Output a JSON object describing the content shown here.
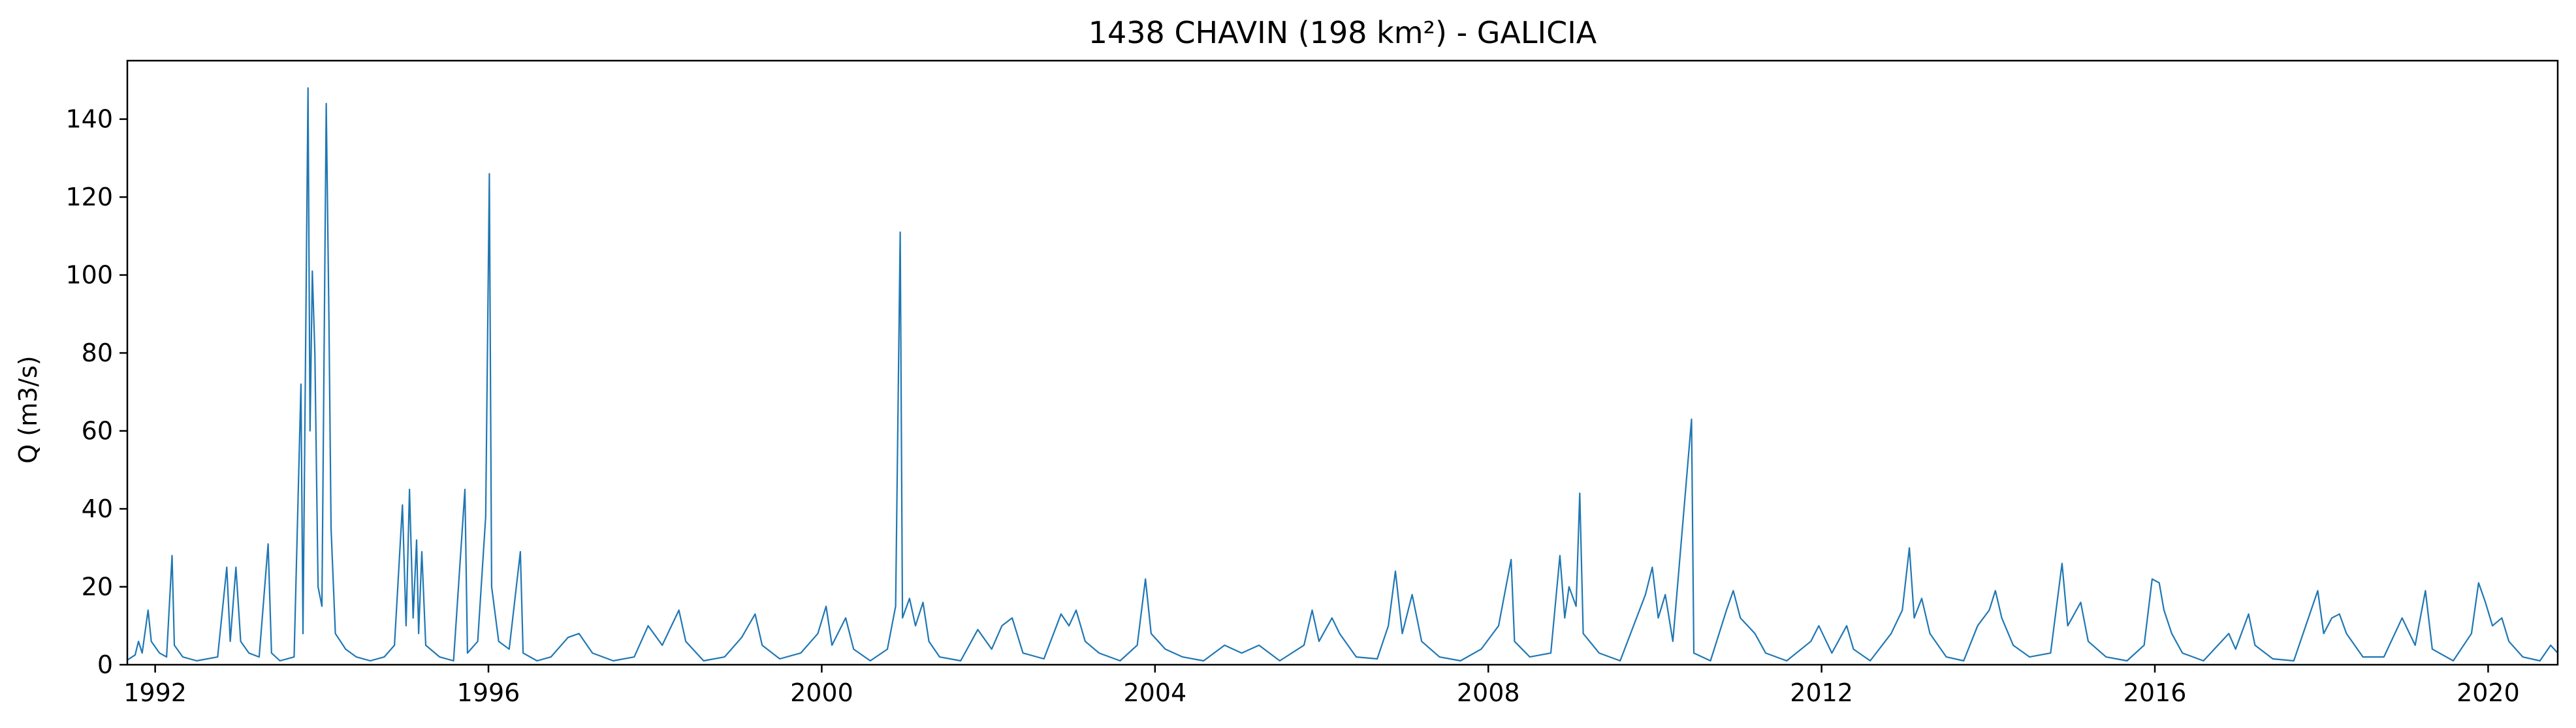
{
  "chart_data": {
    "type": "line",
    "title": "1438 CHAVIN (198 km²) - GALICIA",
    "xlabel": "",
    "ylabel": "Q (m3/s)",
    "xlim": [
      "1991-09-01",
      "2020-11-01"
    ],
    "ylim": [
      0,
      155
    ],
    "x_ticks": [
      "1992",
      "1996",
      "2000",
      "2004",
      "2008",
      "2012",
      "2016",
      "2020"
    ],
    "y_ticks": [
      0,
      20,
      40,
      60,
      80,
      100,
      120,
      140
    ],
    "grid": false,
    "legend": "none",
    "series_color": "#1f77b4",
    "series": [
      {
        "values_info": "date, discharge (m3/s)",
        "points": [
          [
            "1991-09-01",
            1.2
          ],
          [
            "1991-10-05",
            2.5
          ],
          [
            "1991-10-20",
            6.0
          ],
          [
            "1991-11-05",
            3.0
          ],
          [
            "1991-12-01",
            14.0
          ],
          [
            "1991-12-15",
            6.0
          ],
          [
            "1992-01-20",
            3.0
          ],
          [
            "1992-02-20",
            2.0
          ],
          [
            "1992-03-15",
            28.0
          ],
          [
            "1992-03-25",
            5.0
          ],
          [
            "1992-05-01",
            2.0
          ],
          [
            "1992-07-01",
            1.0
          ],
          [
            "1992-10-01",
            2.0
          ],
          [
            "1992-11-10",
            25.0
          ],
          [
            "1992-11-25",
            6.0
          ],
          [
            "1992-12-20",
            25.0
          ],
          [
            "1993-01-10",
            6.0
          ],
          [
            "1993-02-15",
            3.0
          ],
          [
            "1993-04-01",
            2.0
          ],
          [
            "1993-05-10",
            31.0
          ],
          [
            "1993-05-25",
            3.0
          ],
          [
            "1993-07-01",
            1.0
          ],
          [
            "1993-09-01",
            2.0
          ],
          [
            "1993-10-01",
            72.0
          ],
          [
            "1993-10-10",
            8.0
          ],
          [
            "1993-11-01",
            148.0
          ],
          [
            "1993-11-10",
            60.0
          ],
          [
            "1993-11-20",
            101.0
          ],
          [
            "1993-12-01",
            80.0
          ],
          [
            "1993-12-15",
            20.0
          ],
          [
            "1994-01-01",
            15.0
          ],
          [
            "1994-01-20",
            144.0
          ],
          [
            "1994-02-01",
            88.0
          ],
          [
            "1994-02-10",
            35.0
          ],
          [
            "1994-03-01",
            8.0
          ],
          [
            "1994-04-15",
            4.0
          ],
          [
            "1994-06-01",
            2.0
          ],
          [
            "1994-08-01",
            1.0
          ],
          [
            "1994-10-01",
            2.0
          ],
          [
            "1994-11-15",
            5.0
          ],
          [
            "1994-12-20",
            41.0
          ],
          [
            "1995-01-05",
            10.0
          ],
          [
            "1995-01-20",
            45.0
          ],
          [
            "1995-02-05",
            12.0
          ],
          [
            "1995-02-20",
            32.0
          ],
          [
            "1995-03-01",
            8.0
          ],
          [
            "1995-03-15",
            29.0
          ],
          [
            "1995-04-01",
            5.0
          ],
          [
            "1995-06-01",
            2.0
          ],
          [
            "1995-08-01",
            1.0
          ],
          [
            "1995-09-20",
            45.0
          ],
          [
            "1995-10-01",
            3.0
          ],
          [
            "1995-11-15",
            6.0
          ],
          [
            "1995-12-20",
            38.0
          ],
          [
            "1996-01-05",
            126.0
          ],
          [
            "1996-01-15",
            20.0
          ],
          [
            "1996-02-15",
            6.0
          ],
          [
            "1996-04-01",
            4.0
          ],
          [
            "1996-05-20",
            29.0
          ],
          [
            "1996-06-01",
            3.0
          ],
          [
            "1996-08-01",
            1.0
          ],
          [
            "1996-10-01",
            2.0
          ],
          [
            "1996-12-15",
            7.0
          ],
          [
            "1997-02-01",
            8.0
          ],
          [
            "1997-04-01",
            3.0
          ],
          [
            "1997-07-01",
            1.0
          ],
          [
            "1997-10-01",
            2.0
          ],
          [
            "1997-12-01",
            10.0
          ],
          [
            "1998-02-01",
            5.0
          ],
          [
            "1998-04-15",
            14.0
          ],
          [
            "1998-05-15",
            6.0
          ],
          [
            "1998-08-01",
            1.0
          ],
          [
            "1998-11-01",
            2.0
          ],
          [
            "1999-01-15",
            7.0
          ],
          [
            "1999-03-15",
            13.0
          ],
          [
            "1999-04-15",
            5.0
          ],
          [
            "1999-07-01",
            1.5
          ],
          [
            "1999-10-01",
            3.0
          ],
          [
            "1999-12-15",
            8.0
          ],
          [
            "2000-01-20",
            15.0
          ],
          [
            "2000-02-15",
            5.0
          ],
          [
            "2000-04-15",
            12.0
          ],
          [
            "2000-05-20",
            4.0
          ],
          [
            "2000-08-01",
            1.0
          ],
          [
            "2000-10-15",
            4.0
          ],
          [
            "2000-11-20",
            15.0
          ],
          [
            "2000-12-10",
            111.0
          ],
          [
            "2000-12-20",
            12.0
          ],
          [
            "2001-01-20",
            17.0
          ],
          [
            "2001-02-15",
            10.0
          ],
          [
            "2001-03-20",
            16.0
          ],
          [
            "2001-04-15",
            6.0
          ],
          [
            "2001-06-01",
            2.0
          ],
          [
            "2001-09-01",
            1.0
          ],
          [
            "2001-11-15",
            9.0
          ],
          [
            "2002-01-15",
            4.0
          ],
          [
            "2002-03-01",
            10.0
          ],
          [
            "2002-04-15",
            12.0
          ],
          [
            "2002-06-01",
            3.0
          ],
          [
            "2002-09-01",
            1.5
          ],
          [
            "2002-11-15",
            13.0
          ],
          [
            "2002-12-20",
            10.0
          ],
          [
            "2003-01-20",
            14.0
          ],
          [
            "2003-03-01",
            6.0
          ],
          [
            "2003-05-01",
            3.0
          ],
          [
            "2003-08-01",
            1.0
          ],
          [
            "2003-10-15",
            5.0
          ],
          [
            "2003-11-20",
            22.0
          ],
          [
            "2003-12-15",
            8.0
          ],
          [
            "2004-02-15",
            4.0
          ],
          [
            "2004-05-01",
            2.0
          ],
          [
            "2004-08-01",
            1.0
          ],
          [
            "2004-11-01",
            5.0
          ],
          [
            "2005-01-15",
            3.0
          ],
          [
            "2005-04-01",
            5.0
          ],
          [
            "2005-07-01",
            1.0
          ],
          [
            "2005-10-15",
            5.0
          ],
          [
            "2005-11-20",
            14.0
          ],
          [
            "2005-12-20",
            6.0
          ],
          [
            "2006-02-15",
            12.0
          ],
          [
            "2006-03-20",
            8.0
          ],
          [
            "2006-06-01",
            2.0
          ],
          [
            "2006-09-01",
            1.5
          ],
          [
            "2006-10-20",
            10.0
          ],
          [
            "2006-11-20",
            24.0
          ],
          [
            "2006-12-20",
            8.0
          ],
          [
            "2007-02-01",
            18.0
          ],
          [
            "2007-03-15",
            6.0
          ],
          [
            "2007-06-01",
            2.0
          ],
          [
            "2007-09-01",
            1.0
          ],
          [
            "2007-12-01",
            4.0
          ],
          [
            "2008-02-15",
            10.0
          ],
          [
            "2008-04-10",
            27.0
          ],
          [
            "2008-04-25",
            6.0
          ],
          [
            "2008-07-01",
            2.0
          ],
          [
            "2008-10-01",
            3.0
          ],
          [
            "2008-11-10",
            28.0
          ],
          [
            "2008-12-01",
            12.0
          ],
          [
            "2008-12-20",
            20.0
          ],
          [
            "2009-01-20",
            15.0
          ],
          [
            "2009-02-05",
            44.0
          ],
          [
            "2009-02-20",
            8.0
          ],
          [
            "2009-05-01",
            3.0
          ],
          [
            "2009-08-01",
            1.0
          ],
          [
            "2009-11-20",
            18.0
          ],
          [
            "2009-12-20",
            25.0
          ],
          [
            "2010-01-15",
            12.0
          ],
          [
            "2010-02-15",
            18.0
          ],
          [
            "2010-03-20",
            6.0
          ],
          [
            "2010-06-10",
            63.0
          ],
          [
            "2010-06-20",
            3.0
          ],
          [
            "2010-09-01",
            1.0
          ],
          [
            "2010-11-10",
            14.0
          ],
          [
            "2010-12-10",
            19.0
          ],
          [
            "2011-01-10",
            12.0
          ],
          [
            "2011-03-15",
            8.0
          ],
          [
            "2011-05-01",
            3.0
          ],
          [
            "2011-08-01",
            1.0
          ],
          [
            "2011-11-15",
            6.0
          ],
          [
            "2011-12-20",
            10.0
          ],
          [
            "2012-02-15",
            3.0
          ],
          [
            "2012-04-20",
            10.0
          ],
          [
            "2012-05-20",
            4.0
          ],
          [
            "2012-08-01",
            1.0
          ],
          [
            "2012-11-01",
            8.0
          ],
          [
            "2012-12-20",
            14.0
          ],
          [
            "2013-01-20",
            30.0
          ],
          [
            "2013-02-10",
            12.0
          ],
          [
            "2013-03-15",
            17.0
          ],
          [
            "2013-04-20",
            8.0
          ],
          [
            "2013-07-01",
            2.0
          ],
          [
            "2013-09-15",
            1.0
          ],
          [
            "2013-11-15",
            10.0
          ],
          [
            "2014-01-05",
            14.0
          ],
          [
            "2014-02-01",
            19.0
          ],
          [
            "2014-03-01",
            12.0
          ],
          [
            "2014-04-20",
            5.0
          ],
          [
            "2014-07-01",
            2.0
          ],
          [
            "2014-10-01",
            3.0
          ],
          [
            "2014-11-20",
            26.0
          ],
          [
            "2014-12-15",
            10.0
          ],
          [
            "2015-02-10",
            16.0
          ],
          [
            "2015-03-15",
            6.0
          ],
          [
            "2015-06-01",
            2.0
          ],
          [
            "2015-09-01",
            1.0
          ],
          [
            "2015-11-15",
            5.0
          ],
          [
            "2015-12-20",
            22.0
          ],
          [
            "2016-01-20",
            21.0
          ],
          [
            "2016-02-10",
            14.0
          ],
          [
            "2016-03-15",
            8.0
          ],
          [
            "2016-05-01",
            3.0
          ],
          [
            "2016-08-01",
            1.0
          ],
          [
            "2016-11-20",
            8.0
          ],
          [
            "2016-12-20",
            4.0
          ],
          [
            "2017-02-15",
            13.0
          ],
          [
            "2017-03-15",
            5.0
          ],
          [
            "2017-06-01",
            1.5
          ],
          [
            "2017-09-01",
            1.0
          ],
          [
            "2017-12-15",
            19.0
          ],
          [
            "2018-01-10",
            8.0
          ],
          [
            "2018-02-15",
            12.0
          ],
          [
            "2018-03-20",
            13.0
          ],
          [
            "2018-04-20",
            8.0
          ],
          [
            "2018-07-01",
            2.0
          ],
          [
            "2018-10-01",
            2.0
          ],
          [
            "2018-12-20",
            12.0
          ],
          [
            "2019-02-15",
            5.0
          ],
          [
            "2019-04-01",
            19.0
          ],
          [
            "2019-05-01",
            4.0
          ],
          [
            "2019-08-01",
            1.0
          ],
          [
            "2019-10-20",
            8.0
          ],
          [
            "2019-11-20",
            21.0
          ],
          [
            "2019-12-20",
            16.0
          ],
          [
            "2020-01-20",
            10.0
          ],
          [
            "2020-03-01",
            12.0
          ],
          [
            "2020-04-01",
            6.0
          ],
          [
            "2020-06-01",
            2.0
          ],
          [
            "2020-08-15",
            1.0
          ],
          [
            "2020-10-01",
            5.0
          ],
          [
            "2020-11-01",
            3.0
          ]
        ]
      }
    ]
  }
}
